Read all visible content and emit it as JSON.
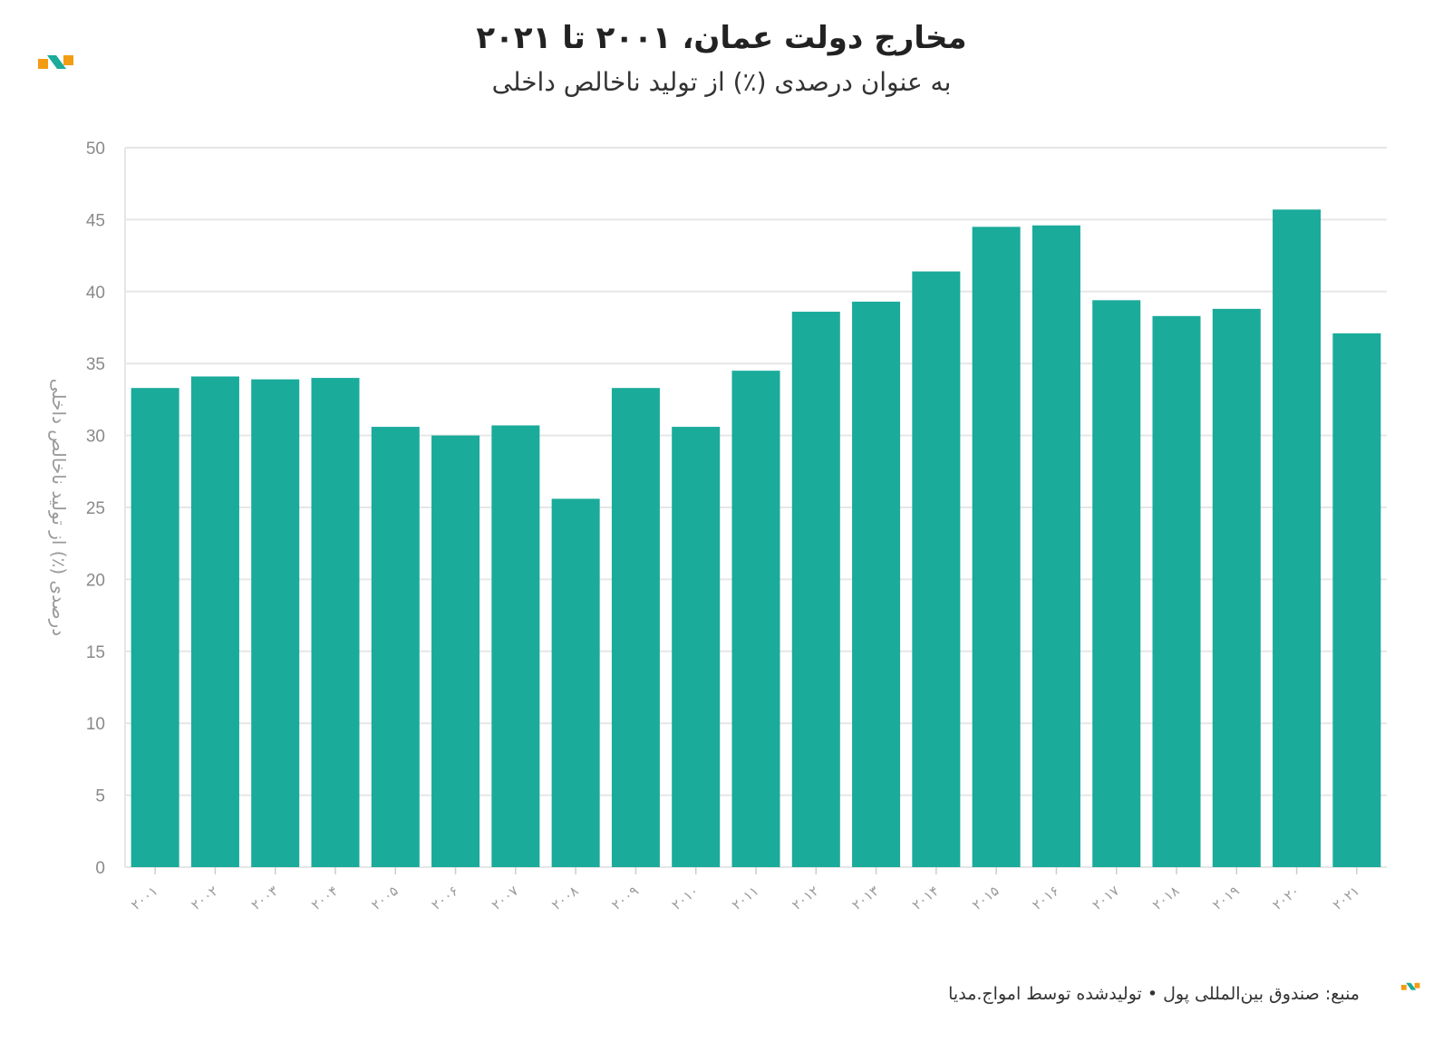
{
  "header": {
    "title": "مخارج دولت عمان، ۲۰۰۱ تا ۲۰۲۱",
    "subtitle": "به عنوان درصدی (٪) از تولید ناخالص داخلی"
  },
  "footer": {
    "text": "منبع: صندوق بین‌المللی پول • تولیدشده توسط امواج.مدیا"
  },
  "colors": {
    "bar": "#1aab9b",
    "grid": "#e6e6e6",
    "logo_orange": "#f39c12",
    "logo_teal": "#1aab9b"
  },
  "chart_data": {
    "type": "bar",
    "title": "مخارج دولت عمان، ۲۰۰۱ تا ۲۰۲۱",
    "subtitle": "به عنوان درصدی (٪) از تولید ناخالص داخلی",
    "xlabel": "",
    "ylabel": "درصدی (٪) از تولید ناخالص داخلی",
    "ylim": [
      0,
      50
    ],
    "yticks": [
      0,
      5,
      10,
      15,
      20,
      25,
      30,
      35,
      40,
      45,
      50
    ],
    "grid": true,
    "categories": [
      "۲۰۰۱",
      "۲۰۰۲",
      "۲۰۰۳",
      "۲۰۰۴",
      "۲۰۰۵",
      "۲۰۰۶",
      "۲۰۰۷",
      "۲۰۰۸",
      "۲۰۰۹",
      "۲۰۱۰",
      "۲۰۱۱",
      "۲۰۱۲",
      "۲۰۱۳",
      "۲۰۱۴",
      "۲۰۱۵",
      "۲۰۱۶",
      "۲۰۱۷",
      "۲۰۱۸",
      "۲۰۱۹",
      "۲۰۲۰",
      "۲۰۲۱"
    ],
    "values": [
      33.3,
      34.1,
      33.9,
      34.0,
      30.6,
      30.0,
      30.7,
      25.6,
      33.3,
      30.6,
      34.5,
      38.6,
      39.3,
      41.4,
      44.5,
      44.6,
      39.4,
      38.3,
      38.8,
      45.7,
      37.1
    ]
  }
}
